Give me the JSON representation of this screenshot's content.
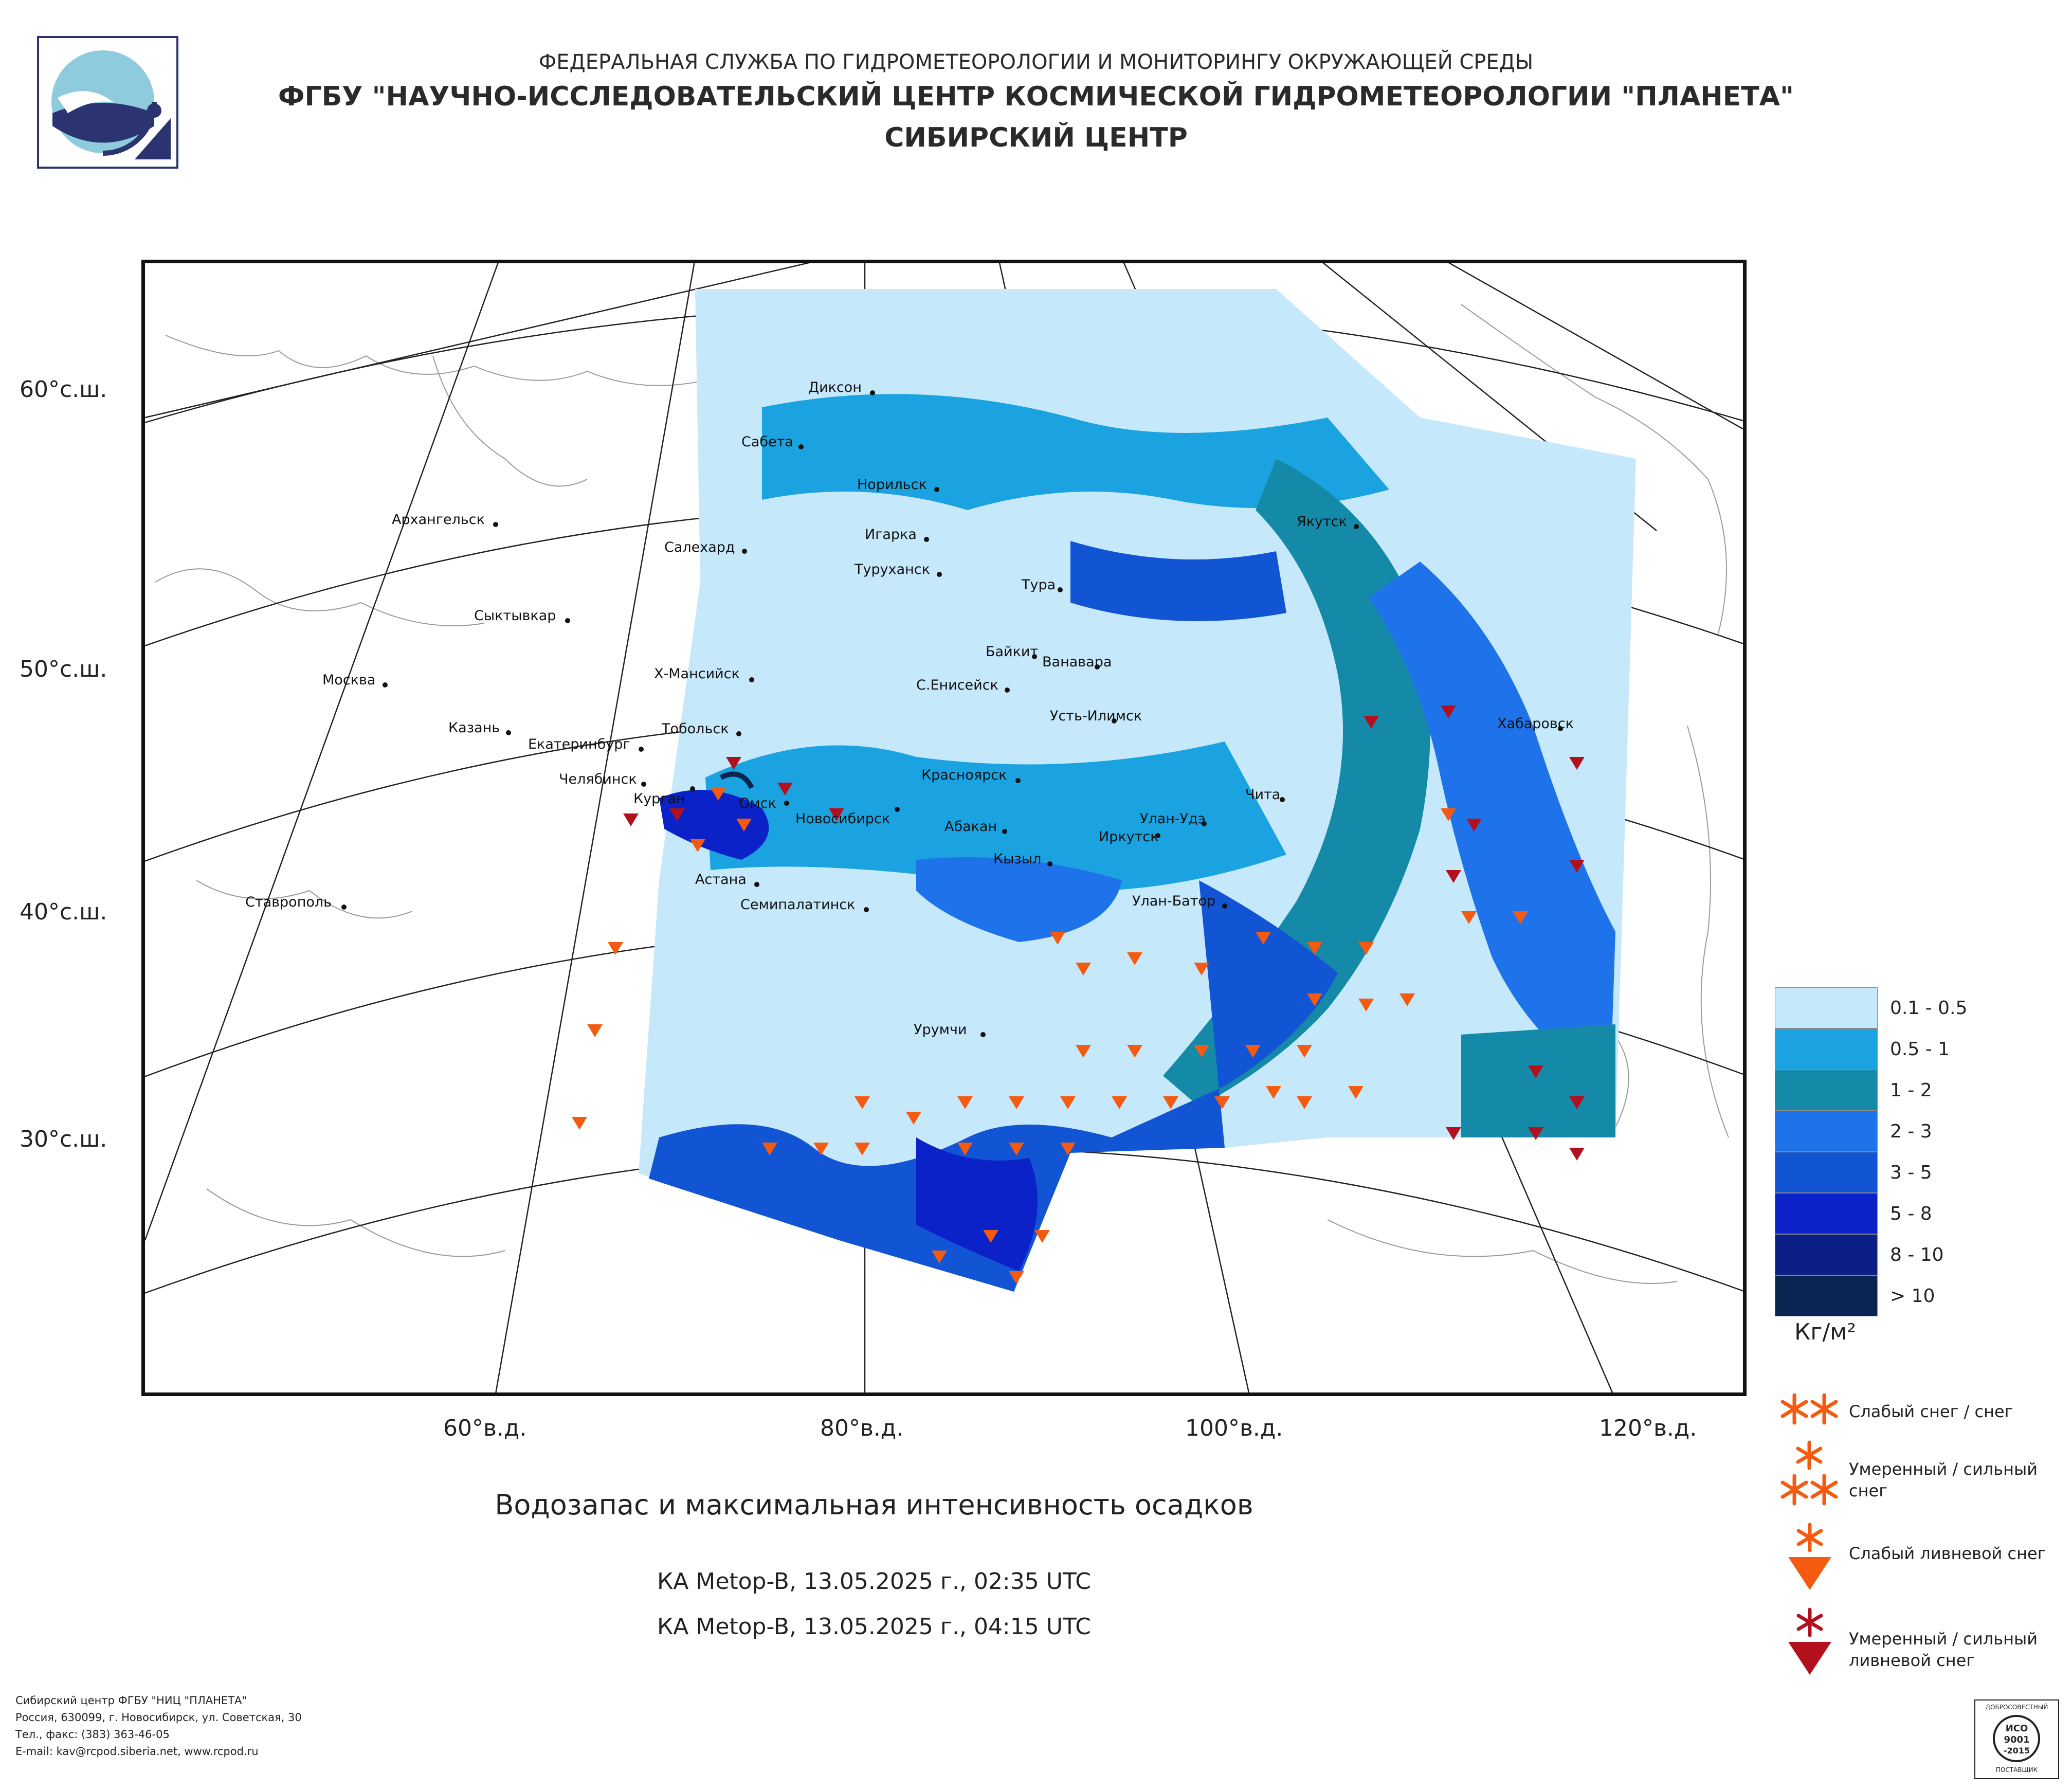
{
  "header": {
    "line1": "ФЕДЕРАЛЬНАЯ СЛУЖБА ПО ГИДРОМЕТЕОРОЛОГИИ И МОНИТОРИНГУ ОКРУЖАЮЩЕЙ СРЕДЫ",
    "line2": "ФГБУ \"НАУЧНО-ИССЛЕДОВАТЕЛЬСКИЙ ЦЕНТР КОСМИЧЕСКОЙ ГИДРОМЕТЕОРОЛОГИИ \"ПЛАНЕТА\"",
    "line3": "СИБИРСКИЙ ЦЕНТР"
  },
  "map": {
    "lat_labels": [
      "60°с.ш.",
      "50°с.ш.",
      "40°с.ш.",
      "30°с.ш."
    ],
    "lon_labels": [
      "60°в.д.",
      "80°в.д.",
      "100°в.д.",
      "120°в.д."
    ],
    "cities": [
      "Диксон",
      "Сабета",
      "Норильск",
      "Игарка",
      "Салехард",
      "Туруханск",
      "Тура",
      "Якутск",
      "Архангельск",
      "Сыктывкар",
      "Москва",
      "Х-Мансийск",
      "Байкит",
      "Ванавара",
      "С.Енисейск",
      "Усть-Илимск",
      "Казань",
      "Екатеринбург",
      "Тобольск",
      "Хабаровск",
      "Челябинск",
      "Курган",
      "Омск",
      "Новосибирск",
      "Красноярск",
      "Абакан",
      "Улан-Удэ",
      "Чита",
      "Иркутск",
      "Кызыл",
      "Астана",
      "Семипалатинск",
      "Улан-Батор",
      "Ставрополь",
      "Урумчи"
    ]
  },
  "legend": {
    "classes": [
      {
        "label": "0.1 - 0.5",
        "color": "#c6e8fb"
      },
      {
        "label": "0.5 - 1",
        "color": "#1aa3e0"
      },
      {
        "label": "1 - 2",
        "color": "#148aa8"
      },
      {
        "label": "2 - 3",
        "color": "#1f73ea"
      },
      {
        "label": "3 - 5",
        "color": "#1255d4"
      },
      {
        "label": "5 - 8",
        "color": "#0a22c8"
      },
      {
        "label": "8 - 10",
        "color": "#0c1f86"
      },
      {
        "label": "> 10",
        "color": "#0a2552"
      }
    ],
    "unit": "Кг/м²",
    "symbols": [
      {
        "label": "Слабый снег / снег",
        "color": "#f45a10"
      },
      {
        "label": "Умеренный / сильный снег",
        "color": "#f45a10"
      },
      {
        "label": "Слабый ливневой снег",
        "color": "#f45a10"
      },
      {
        "label": "Умеренный / сильный ливневой снег",
        "color": "#b3101e"
      }
    ]
  },
  "title": {
    "main": "Водозапас и максимальная интенсивность осадков",
    "pass1": "КА Metop-B, 13.05.2025 г., 02:35 UTC",
    "pass2": "КА Metop-B, 13.05.2025 г., 04:15 UTC"
  },
  "footer": {
    "org": "Сибирский центр ФГБУ \"НИЦ \"ПЛАНЕТА\"",
    "address": "Россия, 630099, г. Новосибирск, ул. Советская, 30",
    "phone": "Тел., факс: (383) 363-46-05",
    "email": "E-mail: kav@rcpod.siberia.net, www.rcpod.ru"
  },
  "badge": {
    "line1": "ДОБРОСОВЕСТНЫЙ",
    "iso": "ИСО",
    "num": "9001",
    "year": "-2015",
    "line2": "ПОСТАВЩИК"
  }
}
